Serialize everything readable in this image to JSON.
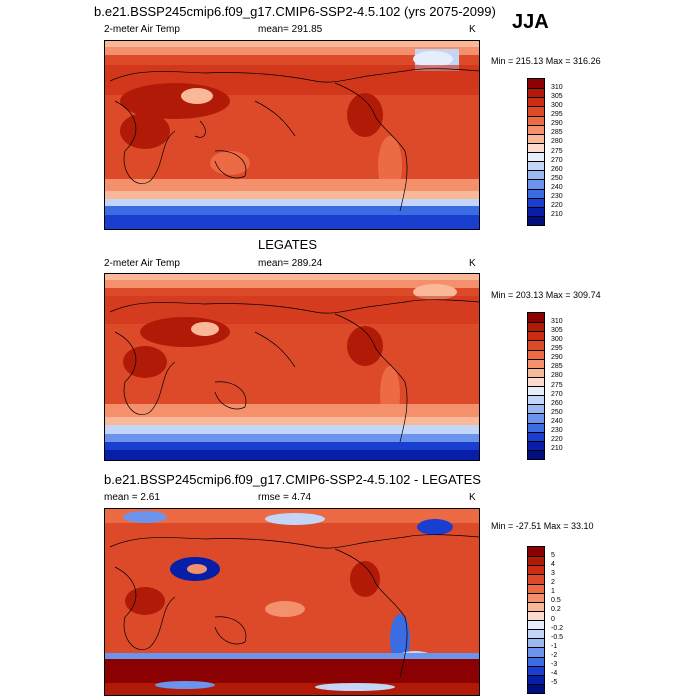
{
  "header": {
    "title": "b.e21.BSSP245cmip6.f09_g17.CMIP6-SSP2-4.5.102 (yrs 2075-2099)",
    "season": "JJA"
  },
  "panels": [
    {
      "id": "model",
      "title": "",
      "left_label": "2-meter Air Temp",
      "center_label": "mean= 291.85",
      "right_label": "K",
      "minmax": "Min = 215.13 Max = 316.26",
      "colorbar": {
        "levels": [
          "310",
          "305",
          "300",
          "295",
          "290",
          "285",
          "280",
          "275",
          "270",
          "260",
          "250",
          "240",
          "230",
          "220",
          "210"
        ],
        "colors": [
          "#8b0000",
          "#b21a08",
          "#cc2c14",
          "#dd4a2a",
          "#ec6a44",
          "#f4906c",
          "#f9b898",
          "#fcdccc",
          "#e6eefc",
          "#c4d6f8",
          "#9ab8f2",
          "#6c94ec",
          "#3c6ce2",
          "#1a3ed0",
          "#061ea8",
          "#000e80"
        ]
      }
    },
    {
      "id": "obs",
      "title": "LEGATES",
      "left_label": "2-meter Air Temp",
      "center_label": "mean= 289.24",
      "right_label": "K",
      "minmax": "Min = 203.13 Max = 309.74",
      "colorbar": {
        "levels": [
          "310",
          "305",
          "300",
          "295",
          "290",
          "285",
          "280",
          "275",
          "270",
          "260",
          "250",
          "240",
          "230",
          "220",
          "210"
        ],
        "colors": [
          "#8b0000",
          "#b21a08",
          "#cc2c14",
          "#dd4a2a",
          "#ec6a44",
          "#f4906c",
          "#f9b898",
          "#fcdccc",
          "#e6eefc",
          "#c4d6f8",
          "#9ab8f2",
          "#6c94ec",
          "#3c6ce2",
          "#1a3ed0",
          "#061ea8",
          "#000e80"
        ]
      }
    },
    {
      "id": "diff",
      "title": "b.e21.BSSP245cmip6.f09_g17.CMIP6-SSP2-4.5.102 - LEGATES",
      "left_label": "mean =   2.61",
      "center_label": "rmse =   4.74",
      "right_label": "K",
      "minmax": "Min = -27.51 Max =  33.10",
      "colorbar": {
        "levels": [
          "5",
          "4",
          "3",
          "2",
          "1",
          "0.5",
          "0.2",
          "0",
          "-0.2",
          "-0.5",
          "-1",
          "-2",
          "-3",
          "-4",
          "-5"
        ],
        "colors": [
          "#8b0000",
          "#b21a08",
          "#cc2c14",
          "#dd4a2a",
          "#ec6a44",
          "#f4906c",
          "#f9b898",
          "#fcdccc",
          "#e6eefc",
          "#c4d6f8",
          "#9ab8f2",
          "#6c94ec",
          "#3c6ce2",
          "#1a3ed0",
          "#061ea8",
          "#000e80"
        ]
      }
    }
  ]
}
